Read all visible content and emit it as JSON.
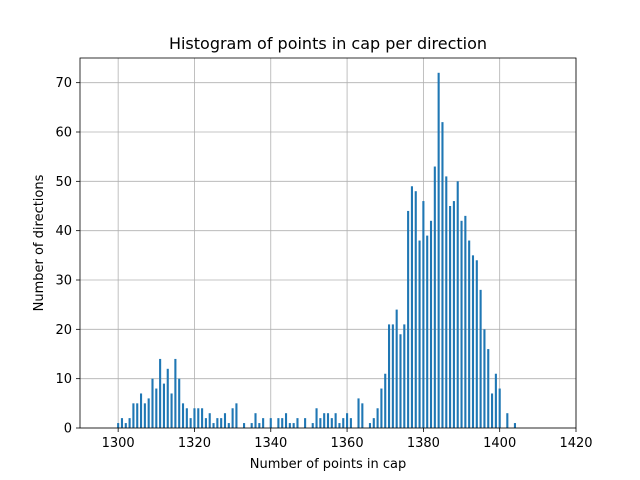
{
  "chart_data": {
    "type": "bar",
    "title": "Histogram of points in cap per direction",
    "xlabel": "Number of points in cap",
    "ylabel": "Number of directions",
    "xlim": [
      1290,
      1420
    ],
    "ylim": [
      0,
      75
    ],
    "xticks": [
      1300,
      1320,
      1340,
      1360,
      1380,
      1400,
      1420
    ],
    "yticks": [
      0,
      10,
      20,
      30,
      40,
      50,
      60,
      70
    ],
    "grid": true,
    "bar_color": "#1f77b4",
    "x": [
      1300,
      1301,
      1302,
      1303,
      1304,
      1305,
      1306,
      1307,
      1308,
      1309,
      1310,
      1311,
      1312,
      1313,
      1314,
      1315,
      1316,
      1317,
      1318,
      1319,
      1320,
      1321,
      1322,
      1323,
      1324,
      1325,
      1326,
      1327,
      1328,
      1329,
      1330,
      1331,
      1332,
      1333,
      1334,
      1335,
      1336,
      1337,
      1338,
      1339,
      1340,
      1341,
      1342,
      1343,
      1344,
      1345,
      1346,
      1347,
      1348,
      1349,
      1350,
      1351,
      1352,
      1353,
      1354,
      1355,
      1356,
      1357,
      1358,
      1359,
      1360,
      1361,
      1362,
      1363,
      1364,
      1365,
      1366,
      1367,
      1368,
      1369,
      1370,
      1371,
      1372,
      1373,
      1374,
      1375,
      1376,
      1377,
      1378,
      1379,
      1380,
      1381,
      1382,
      1383,
      1384,
      1385,
      1386,
      1387,
      1388,
      1389,
      1390,
      1391,
      1392,
      1393,
      1394,
      1395,
      1396,
      1397,
      1398,
      1399,
      1400,
      1401,
      1402,
      1403,
      1404,
      1405
    ],
    "values": [
      1,
      2,
      1,
      2,
      5,
      5,
      7,
      5,
      6,
      10,
      8,
      14,
      9,
      12,
      7,
      14,
      10,
      5,
      4,
      2,
      4,
      4,
      4,
      2,
      3,
      1,
      2,
      2,
      3,
      1,
      4,
      5,
      0,
      1,
      0,
      1,
      3,
      1,
      2,
      0,
      2,
      0,
      2,
      2,
      3,
      1,
      1,
      2,
      0,
      2,
      0,
      1,
      4,
      2,
      3,
      3,
      2,
      3,
      1,
      2,
      3,
      2,
      0,
      6,
      5,
      0,
      1,
      2,
      4,
      8,
      11,
      21,
      21,
      24,
      19,
      21,
      44,
      49,
      48,
      38,
      46,
      39,
      42,
      53,
      72,
      62,
      51,
      45,
      46,
      50,
      42,
      43,
      38,
      35,
      34,
      28,
      20,
      16,
      7,
      11,
      8,
      0,
      3,
      0,
      1,
      0
    ]
  }
}
